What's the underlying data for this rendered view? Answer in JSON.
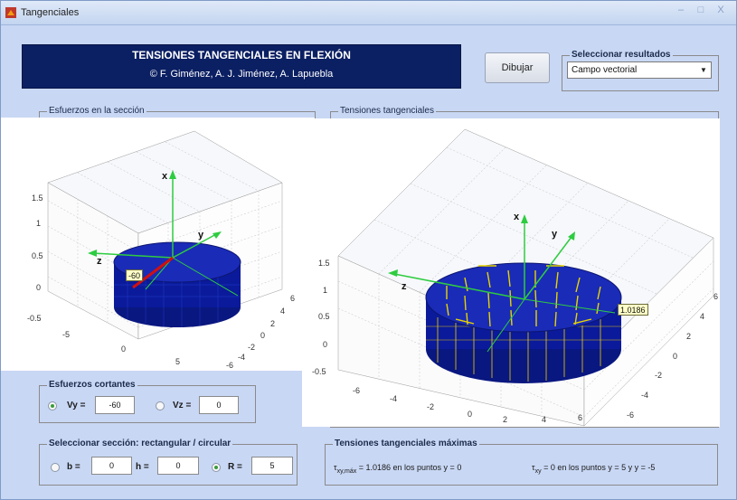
{
  "window": {
    "title": "Tangenciales",
    "controls": [
      "–",
      "□",
      "X"
    ]
  },
  "header": {
    "title": "TENSIONES TANGENCIALES EN FLEXIÓN",
    "subtitle": "© F. Giménez, A. J. Jiménez, A. Lapuebla"
  },
  "toolbar": {
    "draw_label": "Dibujar"
  },
  "results": {
    "group_title": "Seleccionar resultados",
    "selected": "Campo vectorial"
  },
  "left_plot": {
    "group_title": "Esfuerzos en la sección",
    "z_ticks": [
      "1.5",
      "1",
      "0.5",
      "0",
      "-0.5"
    ],
    "x_ticks": [
      "-5",
      "0",
      "5"
    ],
    "y_ticks": [
      "6",
      "4",
      "2",
      "0",
      "-2",
      "-4",
      "-6"
    ],
    "axis_x": "x",
    "axis_y": "y",
    "axis_z": "z",
    "datatip": "-60"
  },
  "right_plot": {
    "group_title": "Tensiones tangenciales",
    "z_ticks": [
      "1.5",
      "1",
      "0.5",
      "0",
      "-0.5"
    ],
    "x_ticks": [
      "-6",
      "-4",
      "-2",
      "0",
      "2",
      "4",
      "6"
    ],
    "y_ticks": [
      "6",
      "4",
      "2",
      "0",
      "-2",
      "-4",
      "-6"
    ],
    "axis_x": "x",
    "axis_y": "y",
    "axis_z": "z",
    "datatip": "1.0186"
  },
  "cortantes": {
    "group_title": "Esfuerzos cortantes",
    "vy_label": "Vy =",
    "vy_value": "-60",
    "vz_label": "Vz =",
    "vz_value": "0"
  },
  "seccion": {
    "group_title": "Seleccionar sección:  rectangular / circular",
    "b_label": "b =",
    "b_value": "0",
    "h_label": "h =",
    "h_value": "0",
    "r_label": "R =",
    "r_value": "5"
  },
  "maximas": {
    "group_title": "Tensiones tangenciales máximas",
    "tau_max_symbol": "τ",
    "tau_max_sub": "xy,máx",
    "tau_max_text": "= 1.0186   en los puntos  y = 0",
    "tau_zero_symbol": "τ",
    "tau_zero_sub": "xy",
    "tau_zero_text": "= 0   en los puntos  y = 5  y  y = -5"
  },
  "colors": {
    "window_bg": "#c8d7f4",
    "header_bg": "#0b1f63",
    "cylinder": "#0a1a9a",
    "axis_green": "#2ecc40",
    "vector_yellow": "#e8d400",
    "force_red": "#d01010"
  }
}
